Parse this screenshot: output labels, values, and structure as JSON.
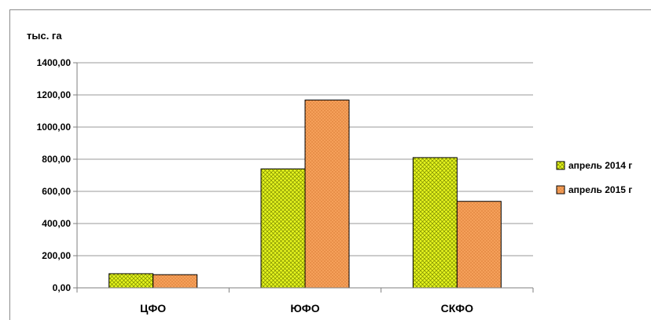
{
  "chart_data": {
    "type": "bar",
    "ylabel": "тыс. га",
    "categories": [
      "ЦФО",
      "ЮФО",
      "СКФО"
    ],
    "series": [
      {
        "name": "апрель 2014 г",
        "values": [
          88,
          740,
          810
        ],
        "color": "#e6f51e",
        "pattern": "crosshatch"
      },
      {
        "name": "апрель 2015 г",
        "values": [
          82,
          1168,
          538
        ],
        "color": "#f5a05a",
        "pattern": "dots"
      }
    ],
    "ylim": [
      0,
      1400
    ],
    "yticks": [
      "0,00",
      "200,00",
      "400,00",
      "600,00",
      "800,00",
      "1000,00",
      "1200,00",
      "1400,00"
    ],
    "grid": true,
    "legend": "right"
  }
}
